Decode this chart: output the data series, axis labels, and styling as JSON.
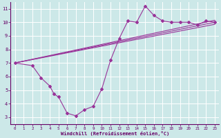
{
  "bg_color": "#cce8e8",
  "line_color": "#993399",
  "grid_color": "#ffffff",
  "xlabel": "Windchill (Refroidissement éolien,°C)",
  "xlabel_color": "#660066",
  "tick_color": "#660066",
  "xlim": [
    -0.5,
    23.5
  ],
  "ylim": [
    2.5,
    11.5
  ],
  "yticks": [
    3,
    4,
    5,
    6,
    7,
    8,
    9,
    10,
    11
  ],
  "xticks": [
    0,
    1,
    2,
    3,
    4,
    5,
    6,
    7,
    8,
    9,
    10,
    11,
    12,
    13,
    14,
    15,
    16,
    17,
    18,
    19,
    20,
    21,
    22,
    23
  ],
  "line1_x": [
    0,
    2,
    3,
    4,
    4.5,
    5,
    6,
    7,
    8,
    9,
    10,
    11,
    12,
    13,
    14,
    15,
    16,
    17,
    18,
    19,
    20,
    21,
    22,
    23
  ],
  "line1_y": [
    7.0,
    6.8,
    5.9,
    5.3,
    4.7,
    4.5,
    3.3,
    3.1,
    3.55,
    3.8,
    5.1,
    7.2,
    8.8,
    10.1,
    10.0,
    11.2,
    10.5,
    10.1,
    10.0,
    10.0,
    10.0,
    9.8,
    10.1,
    10.0
  ],
  "line2_x": [
    0,
    23
  ],
  "line2_y": [
    7.0,
    10.0
  ],
  "line3_x": [
    0,
    23
  ],
  "line3_y": [
    7.0,
    10.0
  ],
  "line4_x": [
    0,
    23
  ],
  "line4_y": [
    7.0,
    10.0
  ],
  "marker": "D",
  "markersize": 2,
  "linewidth": 0.8
}
